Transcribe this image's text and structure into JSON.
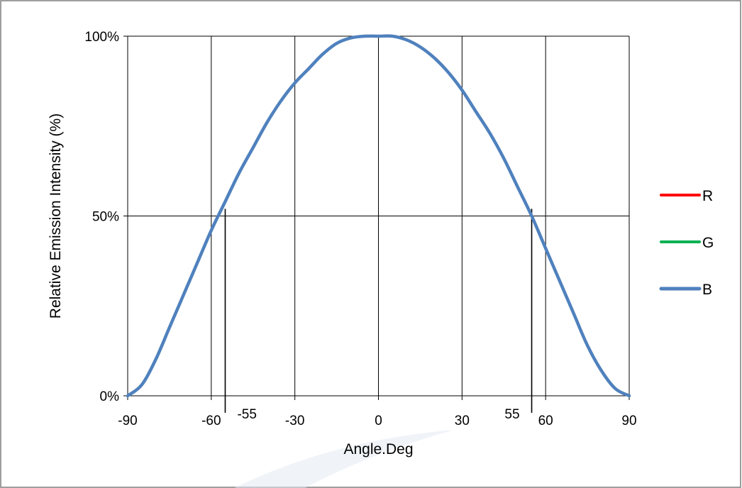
{
  "chart_data": {
    "type": "line",
    "title": "",
    "xlabel": "Angle.Deg",
    "ylabel": "Relative Emission Intensity (%)",
    "xlim": [
      -90,
      90
    ],
    "ylim": [
      0,
      100
    ],
    "x_ticks": [
      -90,
      -60,
      -30,
      0,
      30,
      60,
      90
    ],
    "x_tick_labels": [
      "-90",
      "-60",
      "-30",
      "0",
      "30",
      "60",
      "90"
    ],
    "y_ticks": [
      0,
      50,
      100
    ],
    "y_tick_labels": [
      "0%",
      "50%",
      "100%"
    ],
    "grid": true,
    "legend_position": "right",
    "markers": [
      {
        "x": -55,
        "label": "-55"
      },
      {
        "x": 55,
        "label": "55"
      }
    ],
    "x": [
      -90,
      -85,
      -80,
      -75,
      -70,
      -65,
      -60,
      -55,
      -50,
      -45,
      -40,
      -35,
      -30,
      -25,
      -20,
      -15,
      -10,
      -5,
      0,
      5,
      10,
      15,
      20,
      25,
      30,
      35,
      40,
      45,
      50,
      55,
      60,
      65,
      70,
      75,
      80,
      85,
      90
    ],
    "series": [
      {
        "name": "R",
        "color": "#ff0000",
        "values": [
          0,
          3,
          10,
          19,
          28,
          37,
          46,
          54,
          62,
          69,
          76,
          82,
          87,
          91,
          95,
          98,
          99.5,
          100,
          100,
          100,
          99,
          97,
          94,
          90,
          85,
          79,
          73,
          66,
          58,
          50,
          41,
          32,
          23,
          14,
          7,
          2,
          0
        ]
      },
      {
        "name": "G",
        "color": "#00b050",
        "values": [
          0,
          3,
          10,
          19,
          28,
          37,
          46,
          54,
          62,
          69,
          76,
          82,
          87,
          91,
          95,
          98,
          99.5,
          100,
          100,
          100,
          99,
          97,
          94,
          90,
          85,
          79,
          73,
          66,
          58,
          50,
          41,
          32,
          23,
          14,
          7,
          2,
          0
        ]
      },
      {
        "name": "B",
        "color": "#4f81bd",
        "values": [
          0,
          3,
          10,
          19,
          28,
          37,
          46,
          54,
          62,
          69,
          76,
          82,
          87,
          91,
          95,
          98,
          99.5,
          100,
          100,
          100,
          99,
          97,
          94,
          90,
          85,
          79,
          73,
          66,
          58,
          50,
          41,
          32,
          23,
          14,
          7,
          2,
          0
        ]
      }
    ]
  }
}
